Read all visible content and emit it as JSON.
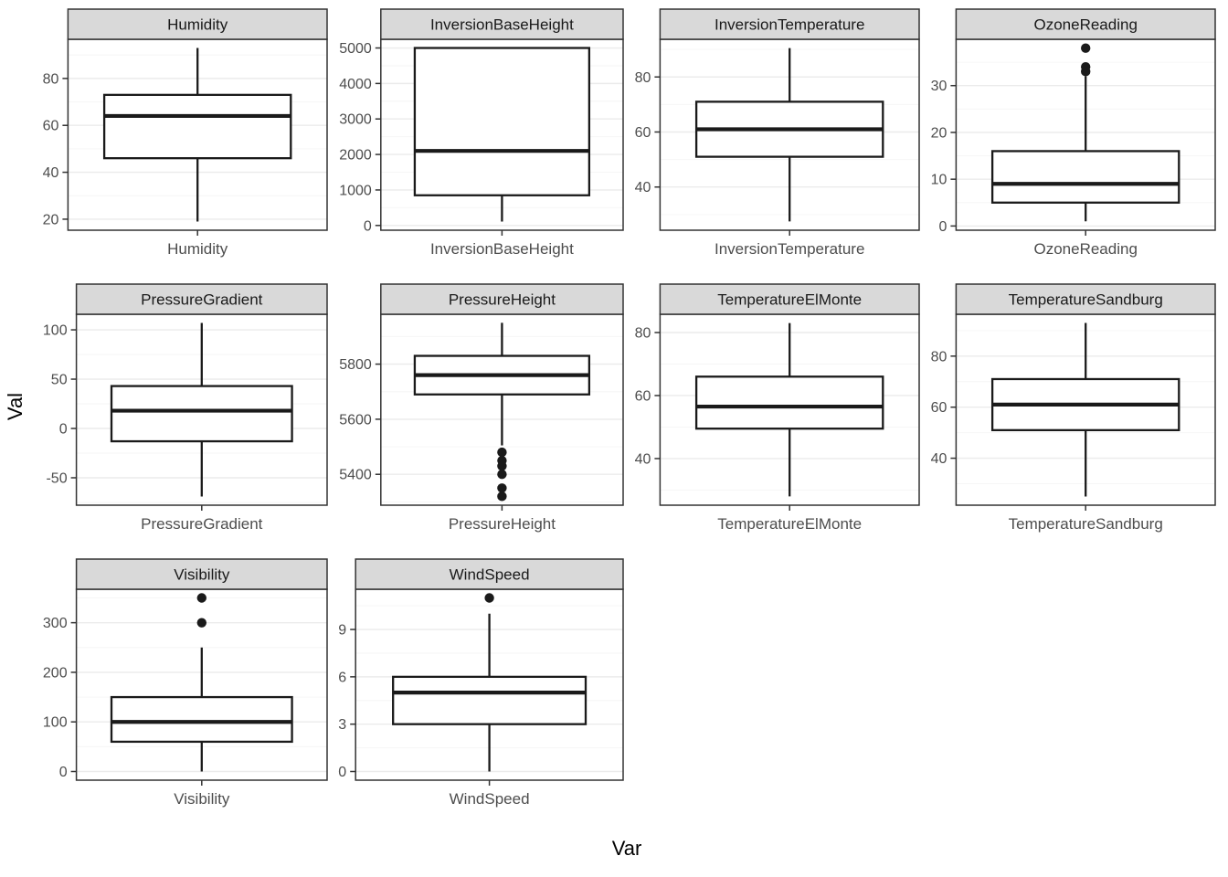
{
  "chart_data": {
    "type": "boxplot",
    "title": "",
    "xlabel": "Var",
    "ylabel": "Val",
    "layout": {
      "columns": 4,
      "rows": 3,
      "grid": true,
      "facet_style": "strip-top",
      "free_y_scales": true
    },
    "colors": {
      "strip_fill": "#d9d9d9",
      "panel_border": "#333333",
      "grid_major": "#ebebeb",
      "grid_minor": "#f6f6f6",
      "box_stroke": "#1a1a1a",
      "tick_label": "#4d4d4d",
      "strip_text": "#1a1a1a"
    },
    "facets": [
      {
        "name": "Humidity",
        "x_tick_label": "Humidity",
        "yticks": [
          20,
          40,
          60,
          80
        ],
        "ylim": [
          15.3,
          96.7
        ],
        "box": {
          "whisker_low": 19,
          "q1": 46,
          "median": 64,
          "q3": 73,
          "whisker_high": 93,
          "outliers": []
        }
      },
      {
        "name": "InversionBaseHeight",
        "x_tick_label": "InversionBaseHeight",
        "yticks": [
          0,
          1000,
          2000,
          3000,
          4000,
          5000
        ],
        "ylim": [
          -134,
          5245
        ],
        "box": {
          "whisker_low": 110,
          "q1": 850,
          "median": 2100,
          "q3": 5000,
          "whisker_high": 5000,
          "outliers": []
        }
      },
      {
        "name": "InversionTemperature",
        "x_tick_label": "InversionTemperature",
        "yticks": [
          40,
          60,
          80
        ],
        "ylim": [
          24.3,
          93.7
        ],
        "box": {
          "whisker_low": 27.5,
          "q1": 51,
          "median": 61,
          "q3": 71,
          "whisker_high": 90.5,
          "outliers": []
        }
      },
      {
        "name": "OzoneReading",
        "x_tick_label": "OzoneReading",
        "yticks": [
          0,
          10,
          20,
          30
        ],
        "ylim": [
          -0.9,
          39.9
        ],
        "box": {
          "whisker_low": 1,
          "q1": 5,
          "median": 9,
          "q3": 16,
          "whisker_high": 32,
          "outliers": [
            33,
            34,
            38
          ]
        }
      },
      {
        "name": "PressureGradient",
        "x_tick_label": "PressureGradient",
        "yticks": [
          -50,
          0,
          50,
          100
        ],
        "ylim": [
          -77.8,
          115.8
        ],
        "box": {
          "whisker_low": -69,
          "q1": -13,
          "median": 18,
          "q3": 43,
          "whisker_high": 107,
          "outliers": []
        }
      },
      {
        "name": "PressureHeight",
        "x_tick_label": "PressureHeight",
        "yticks": [
          5400,
          5600,
          5800
        ],
        "ylim": [
          5288,
          5981
        ],
        "box": {
          "whisker_low": 5505,
          "q1": 5690,
          "median": 5760,
          "q3": 5830,
          "whisker_high": 5950,
          "outliers": [
            5480,
            5450,
            5430,
            5400,
            5350,
            5320
          ]
        }
      },
      {
        "name": "TemperatureElMonte",
        "x_tick_label": "TemperatureElMonte",
        "yticks": [
          40,
          60,
          80
        ],
        "ylim": [
          25.2,
          85.8
        ],
        "box": {
          "whisker_low": 28,
          "q1": 49.5,
          "median": 56.5,
          "q3": 66,
          "whisker_high": 83,
          "outliers": []
        }
      },
      {
        "name": "TemperatureSandburg",
        "x_tick_label": "TemperatureSandburg",
        "yticks": [
          40,
          60,
          80
        ],
        "ylim": [
          21.6,
          96.4
        ],
        "box": {
          "whisker_low": 25,
          "q1": 51,
          "median": 61,
          "q3": 71,
          "whisker_high": 93,
          "outliers": []
        }
      },
      {
        "name": "Visibility",
        "x_tick_label": "Visibility",
        "yticks": [
          0,
          100,
          200,
          300
        ],
        "ylim": [
          -17.5,
          367.5
        ],
        "box": {
          "whisker_low": 0,
          "q1": 60,
          "median": 100,
          "q3": 150,
          "whisker_high": 250,
          "outliers": [
            300,
            350
          ]
        }
      },
      {
        "name": "WindSpeed",
        "x_tick_label": "WindSpeed",
        "yticks": [
          0,
          3,
          6,
          9
        ],
        "ylim": [
          -0.55,
          11.55
        ],
        "box": {
          "whisker_low": 0,
          "q1": 3,
          "median": 5,
          "q3": 6,
          "whisker_high": 10,
          "outliers": [
            11
          ]
        }
      }
    ]
  }
}
